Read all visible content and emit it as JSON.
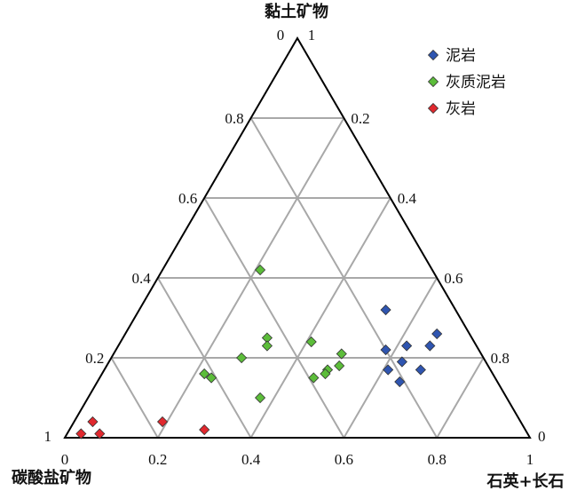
{
  "chart_data": {
    "type": "scatter",
    "subtype": "ternary",
    "grid": true,
    "legend_position": "top-right",
    "axes": {
      "top": "黏土矿物",
      "left": "碳酸盐矿物",
      "right": "石英+长石"
    },
    "corner_ticks": {
      "top_left": "0",
      "top_right": "1",
      "left": "1",
      "right": "0"
    },
    "left_edge_ticks": [
      "0.2",
      "0.4",
      "0.6",
      "0.8"
    ],
    "right_edge_ticks": [
      "0.8",
      "0.6",
      "0.4",
      "0.2"
    ],
    "bottom_ticks": [
      "0",
      "0.2",
      "0.4",
      "0.6",
      "0.8",
      "1"
    ],
    "series": [
      {
        "name": "泥岩",
        "color": "#2f55b0",
        "points": [
          {
            "clay": 0.32,
            "quartz_feldspar": 0.53,
            "carbonate": 0.15
          },
          {
            "clay": 0.26,
            "quartz_feldspar": 0.67,
            "carbonate": 0.07
          },
          {
            "clay": 0.23,
            "quartz_feldspar": 0.62,
            "carbonate": 0.15
          },
          {
            "clay": 0.22,
            "quartz_feldspar": 0.58,
            "carbonate": 0.2
          },
          {
            "clay": 0.23,
            "quartz_feldspar": 0.67,
            "carbonate": 0.1
          },
          {
            "clay": 0.19,
            "quartz_feldspar": 0.63,
            "carbonate": 0.18
          },
          {
            "clay": 0.17,
            "quartz_feldspar": 0.68,
            "carbonate": 0.15
          },
          {
            "clay": 0.17,
            "quartz_feldspar": 0.61,
            "carbonate": 0.22
          },
          {
            "clay": 0.14,
            "quartz_feldspar": 0.65,
            "carbonate": 0.21
          }
        ]
      },
      {
        "name": "灰质泥岩",
        "color": "#5cbd3a",
        "points": [
          {
            "clay": 0.42,
            "quartz_feldspar": 0.21,
            "carbonate": 0.37
          },
          {
            "clay": 0.25,
            "quartz_feldspar": 0.31,
            "carbonate": 0.44
          },
          {
            "clay": 0.23,
            "quartz_feldspar": 0.32,
            "carbonate": 0.45
          },
          {
            "clay": 0.24,
            "quartz_feldspar": 0.41,
            "carbonate": 0.35
          },
          {
            "clay": 0.21,
            "quartz_feldspar": 0.49,
            "carbonate": 0.3
          },
          {
            "clay": 0.2,
            "quartz_feldspar": 0.28,
            "carbonate": 0.52
          },
          {
            "clay": 0.17,
            "quartz_feldspar": 0.48,
            "carbonate": 0.35
          },
          {
            "clay": 0.18,
            "quartz_feldspar": 0.5,
            "carbonate": 0.32
          },
          {
            "clay": 0.16,
            "quartz_feldspar": 0.48,
            "carbonate": 0.36
          },
          {
            "clay": 0.15,
            "quartz_feldspar": 0.46,
            "carbonate": 0.39
          },
          {
            "clay": 0.16,
            "quartz_feldspar": 0.22,
            "carbonate": 0.62
          },
          {
            "clay": 0.15,
            "quartz_feldspar": 0.24,
            "carbonate": 0.61
          },
          {
            "clay": 0.1,
            "quartz_feldspar": 0.37,
            "carbonate": 0.53
          }
        ]
      },
      {
        "name": "灰岩",
        "color": "#e0282e",
        "points": [
          {
            "clay": 0.04,
            "quartz_feldspar": 0.04,
            "carbonate": 0.92
          },
          {
            "clay": 0.04,
            "quartz_feldspar": 0.19,
            "carbonate": 0.77
          },
          {
            "clay": 0.01,
            "quartz_feldspar": 0.03,
            "carbonate": 0.96
          },
          {
            "clay": 0.01,
            "quartz_feldspar": 0.07,
            "carbonate": 0.92
          },
          {
            "clay": 0.02,
            "quartz_feldspar": 0.29,
            "carbonate": 0.69
          }
        ]
      }
    ]
  }
}
